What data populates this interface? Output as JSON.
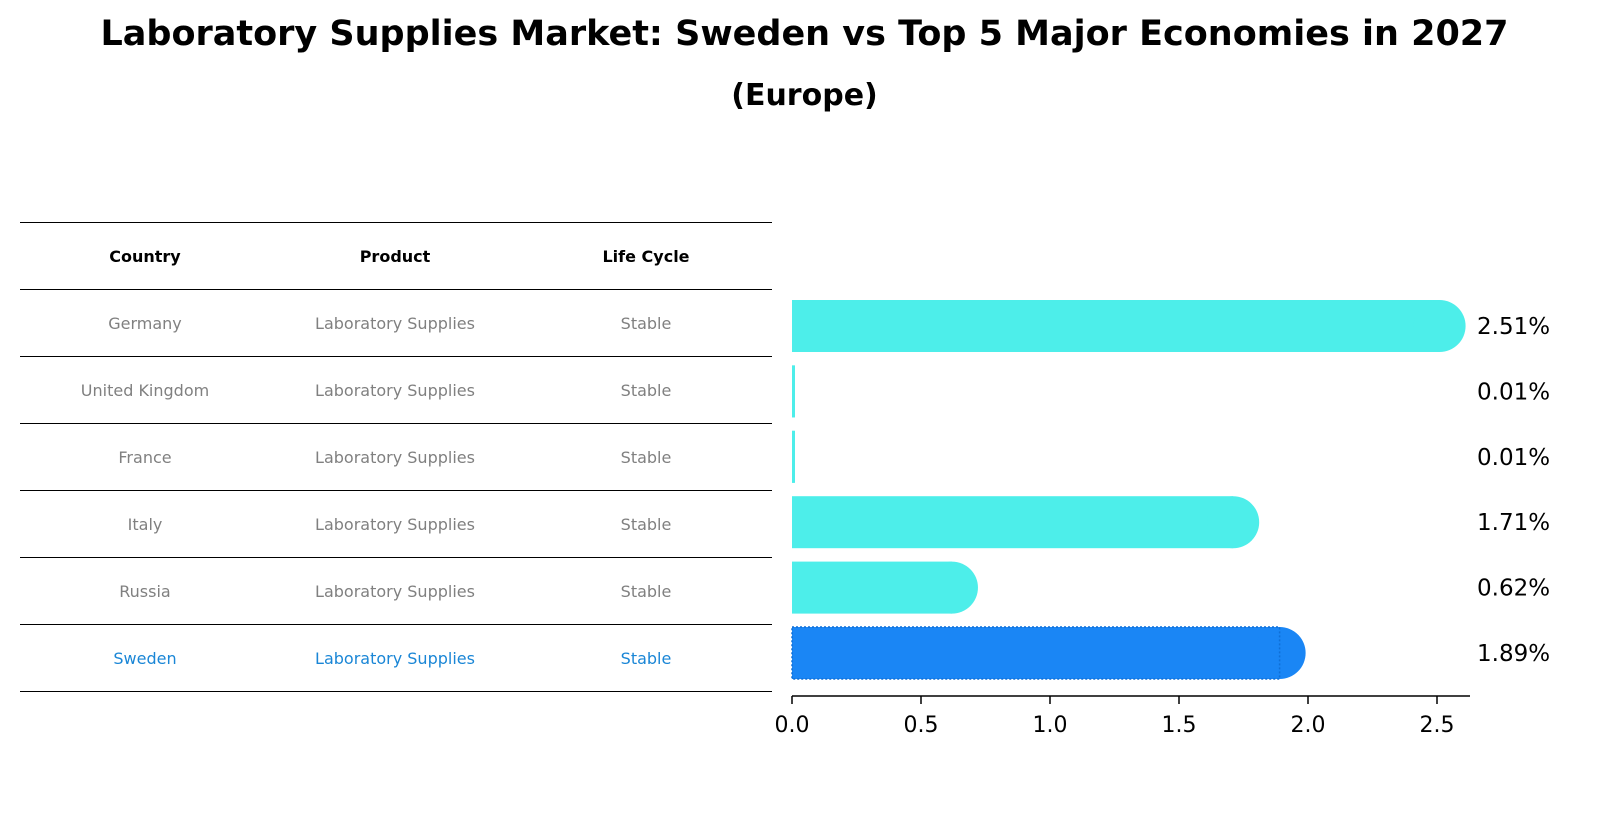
{
  "chart_data": {
    "type": "bar",
    "orientation": "horizontal",
    "title": "Laboratory Supplies Market: Sweden vs Top 5 Major Economies in 2027",
    "subtitle": "(Europe)",
    "table": {
      "headers": [
        "Country",
        "Product",
        "Life Cycle"
      ],
      "rows": [
        [
          "Germany",
          "Laboratory Supplies",
          "Stable"
        ],
        [
          "United Kingdom",
          "Laboratory Supplies",
          "Stable"
        ],
        [
          "France",
          "Laboratory Supplies",
          "Stable"
        ],
        [
          "Italy",
          "Laboratory Supplies",
          "Stable"
        ],
        [
          "Russia",
          "Laboratory Supplies",
          "Stable"
        ],
        [
          "Sweden",
          "Laboratory Supplies",
          "Stable"
        ]
      ],
      "highlight_row": 5
    },
    "categories": [
      "Germany",
      "United Kingdom",
      "France",
      "Italy",
      "Russia",
      "Sweden"
    ],
    "values": [
      2.51,
      0.01,
      0.01,
      1.71,
      0.62,
      1.89
    ],
    "value_labels": [
      "2.51%",
      "0.01%",
      "0.01%",
      "1.71%",
      "0.62%",
      "1.89%"
    ],
    "xlim": [
      0,
      2.63
    ],
    "xticks": [
      0.0,
      0.5,
      1.0,
      1.5,
      2.0,
      2.5
    ],
    "xtick_labels": [
      "0.0",
      "0.5",
      "1.0",
      "1.5",
      "2.0",
      "2.5"
    ],
    "colors": {
      "default": "#4deeea",
      "highlight": "#1a86f5",
      "highlight_text": "#1a86d6"
    }
  }
}
